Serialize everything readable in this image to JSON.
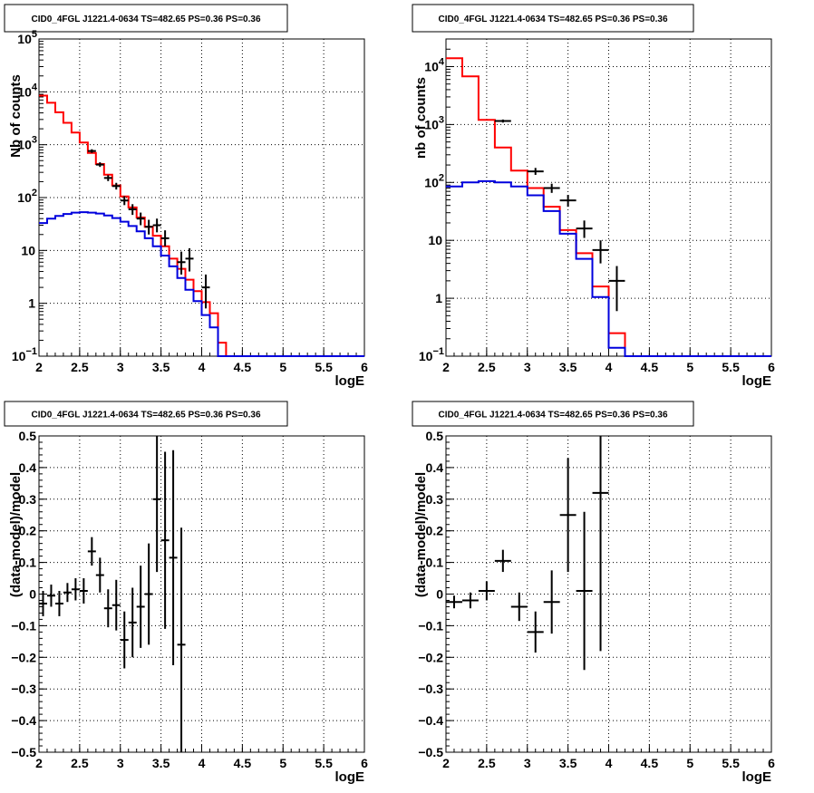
{
  "chart_data": [
    {
      "type": "line",
      "title": "CID0_4FGL J1221.4-0634 TS=482.65 PS=0.36 PS=0.36",
      "xlabel": "logE",
      "ylabel": "Nb of counts",
      "xlim": [
        2,
        6
      ],
      "ylim": [
        0.1,
        100000
      ],
      "yscale": "log",
      "grid": true,
      "x_ticks": [
        "2",
        "2.5",
        "3",
        "3.5",
        "4",
        "4.5",
        "5",
        "5.5",
        "6"
      ],
      "y_ticks": [
        {
          "value": 0.1,
          "base": "10",
          "exp": "−1"
        },
        {
          "value": 1,
          "label": "1"
        },
        {
          "value": 10,
          "label": "10"
        },
        {
          "value": 100,
          "base": "10",
          "exp": "2"
        },
        {
          "value": 1000,
          "base": "10",
          "exp": "3"
        },
        {
          "value": 10000,
          "base": "10",
          "exp": "4"
        },
        {
          "value": 100000,
          "base": "10",
          "exp": "5"
        }
      ],
      "bin_edges": [
        2.0,
        2.1,
        2.2,
        2.3,
        2.4,
        2.5,
        2.6,
        2.7,
        2.8,
        2.9,
        3.0,
        3.1,
        3.2,
        3.3,
        3.4,
        3.5,
        3.6,
        3.7,
        3.8,
        3.9,
        4.0,
        4.1,
        4.2,
        4.3,
        4.4,
        4.5,
        4.6,
        4.7,
        4.8,
        4.9,
        5.0,
        5.1,
        5.2,
        5.3,
        5.4,
        5.5,
        5.6,
        5.7,
        5.8,
        5.9,
        6.0
      ],
      "series": [
        {
          "color": "#ff0000",
          "style": "step",
          "values": [
            8500,
            6200,
            4100,
            2600,
            1700,
            1100,
            700,
            430,
            270,
            170,
            105,
            65,
            42,
            28,
            19,
            12,
            7,
            4.5,
            2.8,
            1.7,
            1.05,
            0.65,
            0.18,
            0.1,
            0.1,
            0.1,
            0.1,
            0.1,
            0.1,
            0.1,
            0.1,
            0.1,
            0.1,
            0.1,
            0.1,
            0.1,
            0.1,
            0.1,
            0.1,
            0.1
          ]
        },
        {
          "color": "#0000dd",
          "style": "step",
          "values": [
            33,
            40,
            45,
            49,
            52,
            53,
            52,
            50,
            46,
            41,
            35,
            29,
            23,
            17,
            12,
            8,
            5,
            3,
            1.8,
            1.1,
            0.6,
            0.35,
            0.1,
            0.1,
            0.1,
            0.1,
            0.1,
            0.1,
            0.1,
            0.1,
            0.1,
            0.1,
            0.1,
            0.1,
            0.1,
            0.1,
            0.1,
            0.1,
            0.1,
            0.1
          ]
        },
        {
          "color": "#000000",
          "style": "errorbar",
          "points": [
            {
              "x": 2.65,
              "y": 760,
              "lo": 700,
              "hi": 820
            },
            {
              "x": 2.75,
              "y": 420,
              "lo": 380,
              "hi": 465
            },
            {
              "x": 2.85,
              "y": 235,
              "lo": 205,
              "hi": 265
            },
            {
              "x": 2.95,
              "y": 165,
              "lo": 142,
              "hi": 190
            },
            {
              "x": 3.05,
              "y": 88,
              "lo": 72,
              "hi": 106
            },
            {
              "x": 3.15,
              "y": 60,
              "lo": 47,
              "hi": 75
            },
            {
              "x": 3.25,
              "y": 40,
              "lo": 30,
              "hi": 52
            },
            {
              "x": 3.35,
              "y": 28,
              "lo": 20,
              "hi": 38
            },
            {
              "x": 3.45,
              "y": 30,
              "lo": 22,
              "hi": 40
            },
            {
              "x": 3.55,
              "y": 17,
              "lo": 12,
              "hi": 24
            },
            {
              "x": 3.75,
              "y": 6,
              "lo": 3.5,
              "hi": 9.5
            },
            {
              "x": 3.85,
              "y": 7,
              "lo": 4,
              "hi": 11
            },
            {
              "x": 4.05,
              "y": 2,
              "lo": 0.8,
              "hi": 3.5
            }
          ]
        }
      ]
    },
    {
      "type": "line",
      "title": "CID0_4FGL J1221.4-0634 TS=482.65 PS=0.36 PS=0.36",
      "xlabel": "logE",
      "ylabel": "nb of counts",
      "xlim": [
        2,
        6
      ],
      "ylim": [
        0.1,
        30000
      ],
      "yscale": "log",
      "grid": true,
      "x_ticks": [
        "2",
        "2.5",
        "3",
        "3.5",
        "4",
        "4.5",
        "5",
        "5.5",
        "6"
      ],
      "y_ticks": [
        {
          "value": 0.1,
          "base": "10",
          "exp": "−1"
        },
        {
          "value": 1,
          "label": "1"
        },
        {
          "value": 10,
          "label": "10"
        },
        {
          "value": 100,
          "base": "10",
          "exp": "2"
        },
        {
          "value": 1000,
          "base": "10",
          "exp": "3"
        },
        {
          "value": 10000,
          "base": "10",
          "exp": "4"
        }
      ],
      "bin_edges": [
        2.0,
        2.2,
        2.4,
        2.6,
        2.8,
        3.0,
        3.2,
        3.4,
        3.6,
        3.8,
        4.0,
        4.2,
        4.4,
        4.6,
        4.8,
        5.0,
        5.2,
        5.4,
        5.6,
        5.8,
        6.0
      ],
      "series": [
        {
          "color": "#ff0000",
          "style": "step",
          "values": [
            14000,
            6800,
            1200,
            400,
            160,
            80,
            38,
            15,
            6,
            1.6,
            0.25,
            0.1,
            0.1,
            0.1,
            0.1,
            0.1,
            0.1,
            0.1,
            0.1,
            0.1
          ]
        },
        {
          "color": "#0000dd",
          "style": "step",
          "values": [
            85,
            100,
            105,
            100,
            85,
            60,
            32,
            13,
            4.8,
            1.05,
            0.14,
            0.1,
            0.1,
            0.1,
            0.1,
            0.1,
            0.1,
            0.1,
            0.1,
            0.1
          ]
        },
        {
          "color": "#000000",
          "style": "errorbar",
          "points": [
            {
              "x": 2.7,
              "y": 1150,
              "lo": 1080,
              "hi": 1220
            },
            {
              "x": 3.1,
              "y": 155,
              "lo": 135,
              "hi": 178
            },
            {
              "x": 3.3,
              "y": 80,
              "lo": 66,
              "hi": 95
            },
            {
              "x": 3.5,
              "y": 49,
              "lo": 38,
              "hi": 61
            },
            {
              "x": 3.7,
              "y": 16,
              "lo": 11,
              "hi": 22
            },
            {
              "x": 3.9,
              "y": 6.8,
              "lo": 4,
              "hi": 10
            },
            {
              "x": 4.1,
              "y": 2,
              "lo": 0.6,
              "hi": 3.6
            }
          ]
        }
      ]
    },
    {
      "type": "scatter",
      "title": "CID0_4FGL J1221.4-0634 TS=482.65 PS=0.36 PS=0.36",
      "xlabel": "logE",
      "ylabel": "(data-model)/model",
      "xlim": [
        2,
        6
      ],
      "ylim": [
        -0.5,
        0.5
      ],
      "grid": true,
      "x_ticks": [
        "2",
        "2.5",
        "3",
        "3.5",
        "4",
        "4.5",
        "5",
        "5.5",
        "6"
      ],
      "y_ticks": [
        "−0.5",
        "−0.4",
        "−0.3",
        "−0.2",
        "−0.1",
        "0",
        "0.1",
        "0.2",
        "0.3",
        "0.4",
        "0.5"
      ],
      "x_halfwidth": 0.05,
      "points": [
        {
          "x": 2.05,
          "y": -0.03,
          "err": 0.04
        },
        {
          "x": 2.15,
          "y": -0.005,
          "err": 0.035
        },
        {
          "x": 2.25,
          "y": -0.03,
          "err": 0.04
        },
        {
          "x": 2.35,
          "y": 0.005,
          "err": 0.03
        },
        {
          "x": 2.45,
          "y": 0.015,
          "err": 0.035
        },
        {
          "x": 2.55,
          "y": 0.01,
          "err": 0.04
        },
        {
          "x": 2.65,
          "y": 0.135,
          "err": 0.045
        },
        {
          "x": 2.75,
          "y": 0.06,
          "err": 0.055
        },
        {
          "x": 2.85,
          "y": -0.045,
          "err": 0.06
        },
        {
          "x": 2.95,
          "y": -0.035,
          "err": 0.08
        },
        {
          "x": 3.05,
          "y": -0.145,
          "err": 0.09
        },
        {
          "x": 3.15,
          "y": -0.09,
          "err": 0.11
        },
        {
          "x": 3.25,
          "y": -0.04,
          "err": 0.13
        },
        {
          "x": 3.35,
          "y": 0.0,
          "err": 0.16
        },
        {
          "x": 3.45,
          "y": 0.3,
          "err": 0.23
        },
        {
          "x": 3.55,
          "y": 0.17,
          "err": 0.28
        },
        {
          "x": 3.65,
          "y": 0.115,
          "err": 0.34
        },
        {
          "x": 3.75,
          "y": -0.16,
          "err": 0.37
        }
      ]
    },
    {
      "type": "scatter",
      "title": "CID0_4FGL J1221.4-0634 TS=482.65 PS=0.36 PS=0.36",
      "xlabel": "logE",
      "ylabel": "(data-model)/model",
      "xlim": [
        2,
        6
      ],
      "ylim": [
        -0.5,
        0.5
      ],
      "grid": true,
      "x_ticks": [
        "2",
        "2.5",
        "3",
        "3.5",
        "4",
        "4.5",
        "5",
        "5.5",
        "6"
      ],
      "y_ticks": [
        "−0.5",
        "−0.4",
        "−0.3",
        "−0.2",
        "−0.1",
        "0",
        "0.1",
        "0.2",
        "0.3",
        "0.4",
        "0.5"
      ],
      "x_halfwidth": 0.1,
      "points": [
        {
          "x": 2.1,
          "y": -0.025,
          "err": 0.02
        },
        {
          "x": 2.3,
          "y": -0.02,
          "err": 0.025
        },
        {
          "x": 2.5,
          "y": 0.01,
          "err": 0.03
        },
        {
          "x": 2.7,
          "y": 0.105,
          "err": 0.035
        },
        {
          "x": 2.9,
          "y": -0.04,
          "err": 0.045
        },
        {
          "x": 3.1,
          "y": -0.12,
          "err": 0.065
        },
        {
          "x": 3.3,
          "y": -0.025,
          "err": 0.1
        },
        {
          "x": 3.5,
          "y": 0.25,
          "err": 0.18
        },
        {
          "x": 3.7,
          "y": 0.01,
          "err": 0.25
        },
        {
          "x": 3.9,
          "y": 0.32,
          "err": 0.5
        }
      ]
    }
  ]
}
